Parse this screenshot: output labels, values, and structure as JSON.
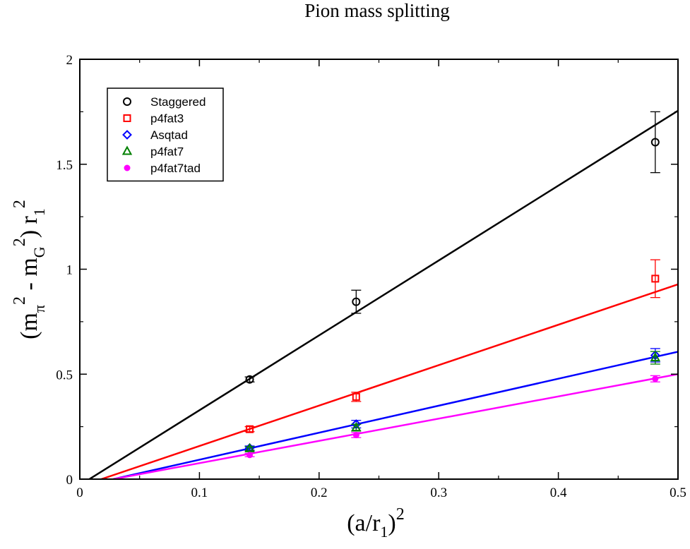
{
  "chart_data": {
    "type": "scatter",
    "title": "Pion mass splitting",
    "xlabel": {
      "base": "(a/r",
      "sub": "1",
      "close": ")",
      "sup": "2"
    },
    "ylabel": {
      "open": "(m",
      "sub1": "π",
      "sup1": "2",
      "mid": " - m",
      "sub2": "G",
      "sup2": "2",
      "close": ") r",
      "sub3": "1",
      "sup3": "2"
    },
    "xlim": [
      0,
      0.5
    ],
    "ylim": [
      0,
      2
    ],
    "xticks": [
      0,
      0.1,
      0.2,
      0.3,
      0.4,
      0.5
    ],
    "xtick_labels": [
      "0",
      "0.1",
      "0.2",
      "0.3",
      "0.4",
      "0.5"
    ],
    "yticks": [
      0,
      0.5,
      1,
      1.5,
      2
    ],
    "ytick_labels": [
      "0",
      "0.5",
      "1",
      "1.5",
      "2"
    ],
    "grid": false,
    "legend_position": "top-left",
    "series": [
      {
        "name": "Staggered",
        "color": "#000000",
        "marker": "circle-open",
        "x": [
          0.142,
          0.231,
          0.481
        ],
        "y": [
          0.475,
          0.845,
          1.605
        ],
        "yerr": [
          0.012,
          0.055,
          0.145
        ],
        "fit": [
          [
            0.008,
            0
          ],
          [
            0.5,
            1.755
          ]
        ]
      },
      {
        "name": "p4fat3",
        "color": "#ff0000",
        "marker": "square-open",
        "x": [
          0.142,
          0.231,
          0.481
        ],
        "y": [
          0.238,
          0.392,
          0.955
        ],
        "yerr": [
          0.012,
          0.022,
          0.09
        ],
        "fit": [
          [
            0.018,
            0
          ],
          [
            0.5,
            0.928
          ]
        ]
      },
      {
        "name": "Asqtad",
        "color": "#0000ff",
        "marker": "diamond-open",
        "x": [
          0.142,
          0.231,
          0.481
        ],
        "y": [
          0.148,
          0.262,
          0.59
        ],
        "yerr": [
          0.01,
          0.018,
          0.032
        ],
        "fit": [
          [
            0.028,
            0
          ],
          [
            0.5,
            0.607
          ]
        ]
      },
      {
        "name": "p4fat7",
        "color": "#008000",
        "marker": "triangle-open",
        "x": [
          0.142,
          0.231,
          0.481
        ],
        "y": [
          0.145,
          0.245,
          0.578
        ],
        "yerr": [
          0.01,
          0.016,
          0.03
        ],
        "fit": []
      },
      {
        "name": "p4fat7tad",
        "color": "#ff00ff",
        "marker": "circle-filled",
        "x": [
          0.142,
          0.231,
          0.481
        ],
        "y": [
          0.115,
          0.21,
          0.478
        ],
        "yerr": [
          0.008,
          0.012,
          0.015
        ],
        "fit": [
          [
            0.028,
            0
          ],
          [
            0.5,
            0.5
          ]
        ]
      }
    ]
  }
}
